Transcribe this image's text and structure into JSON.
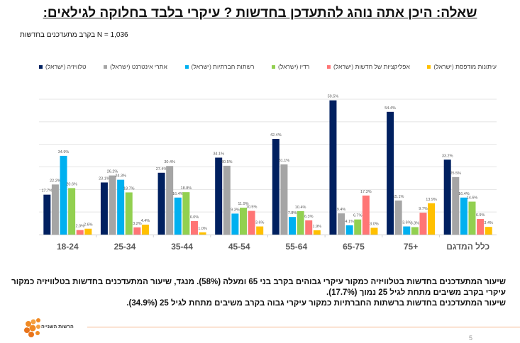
{
  "header": {
    "title": "שאלה: היכן אתה נוהג להתעדכן בחדשות ? עיקרי בלבד בחלוקה לגילאים:",
    "subtitle": "בקרב מתעדכנים בחדשות N = 1,036"
  },
  "chart_data": {
    "type": "bar",
    "categories": [
      "18-24",
      "25-34",
      "35-44",
      "45-54",
      "55-64",
      "65-75",
      "+75",
      "כלל המדגם"
    ],
    "series": [
      {
        "name": "טלוויזיה (ישראל)",
        "color": "#002060",
        "values": [
          17.7,
          23.1,
          27.4,
          34.1,
          42.4,
          59.5,
          54.4,
          33.2
        ]
      },
      {
        "name": "אתרי אינטרנט (ישראל)",
        "color": "#a5a5a5",
        "values": [
          22.2,
          26.2,
          30.4,
          30.5,
          31.1,
          9.4,
          15.1,
          25.5
        ]
      },
      {
        "name": "רשתות חברתיות (ישראל)",
        "color": "#00b0f0",
        "values": [
          34.9,
          24.3,
          16.4,
          9.3,
          7.8,
          4.1,
          3.6,
          16.4
        ]
      },
      {
        "name": "רדיו (ישראל)",
        "color": "#92d050",
        "values": [
          20.6,
          18.7,
          18.8,
          11.9,
          10.4,
          6.7,
          3.3,
          14.6
        ]
      },
      {
        "name": "אפליקציות של חדשות (ישראל)",
        "color": "#ff7575",
        "values": [
          2.0,
          3.2,
          6.0,
          10.5,
          6.3,
          17.3,
          9.7,
          6.9
        ]
      },
      {
        "name": "עיתונות מודפסת (ישראל)",
        "color": "#ffc000",
        "values": [
          2.6,
          4.4,
          1.0,
          3.6,
          1.9,
          3.0,
          13.9,
          3.4
        ]
      }
    ],
    "ylim": [
      0,
      60
    ],
    "grid": true,
    "legend": "top",
    "value_suffix": "%"
  },
  "notes": [
    "שיעור המתעדכנים בחדשות בטלוויזיה כמקור עיקרי גבוהים בקרב בני 65 ומעלה (58%). מנגד, שיעור המתעדכנים בחדשות בטלוויזיה כמקור עיקרי בקרב משיבים מתחת לגיל 25 נמוך (17.7%).",
    "שיעור המתעדכנים בחדשות ברשתות החברתיות כמקור עיקרי גבוה בקרב משיבים מתחת לגיל 25 (34.9%)."
  ],
  "footer": {
    "logo_text": "הרשות השנייה",
    "page_number": "5"
  }
}
